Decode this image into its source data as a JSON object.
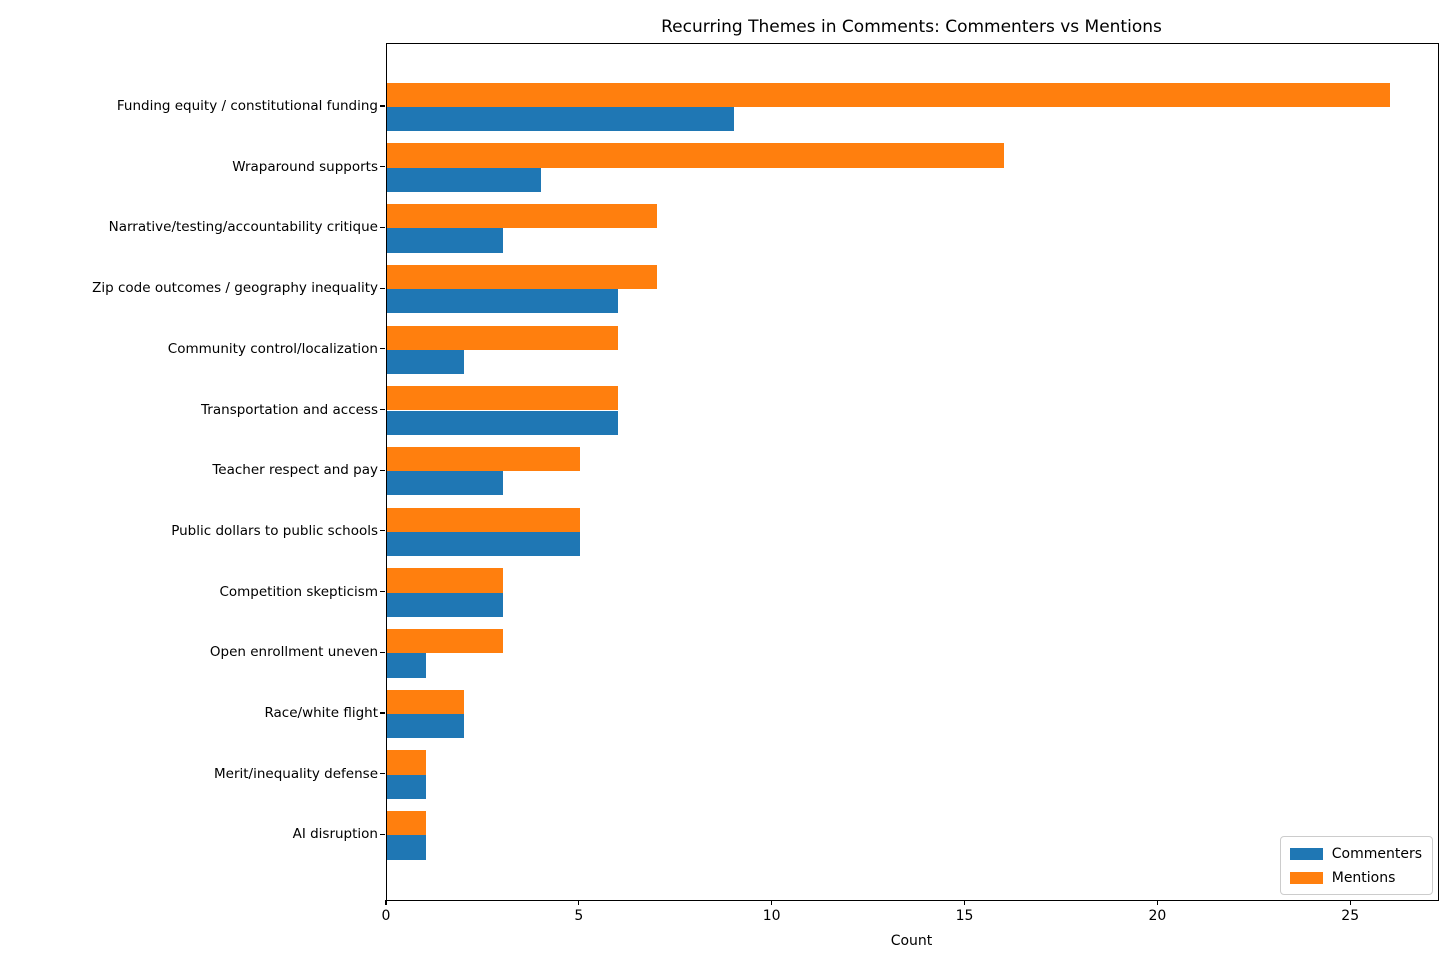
{
  "chart_data": {
    "type": "bar",
    "orientation": "horizontal",
    "title": "Recurring Themes in Comments: Commenters vs Mentions",
    "xlabel": "Count",
    "ylabel": "",
    "categories": [
      "Funding equity / constitutional funding",
      "Wraparound supports",
      "Narrative/testing/accountability critique",
      "Zip code outcomes / geography inequality",
      "Community control/localization",
      "Transportation and access",
      "Teacher respect and pay",
      "Public dollars to public schools",
      "Competition skepticism",
      "Open enrollment uneven",
      "Race/white flight",
      "Merit/inequality defense",
      "AI disruption"
    ],
    "series": [
      {
        "name": "Commenters",
        "color": "#1f77b4",
        "values": [
          9,
          4,
          3,
          6,
          2,
          6,
          3,
          5,
          3,
          1,
          2,
          1,
          1
        ]
      },
      {
        "name": "Mentions",
        "color": "#ff7f0e",
        "values": [
          26,
          16,
          7,
          7,
          6,
          6,
          5,
          5,
          3,
          3,
          2,
          1,
          1
        ]
      }
    ],
    "group_order_top_to_bottom": [
      "Mentions",
      "Commenters"
    ],
    "xticks": [
      0,
      5,
      10,
      15,
      20,
      25
    ],
    "xlim": [
      0,
      27.25
    ],
    "grid": false,
    "legend": {
      "position": "lower right"
    }
  }
}
